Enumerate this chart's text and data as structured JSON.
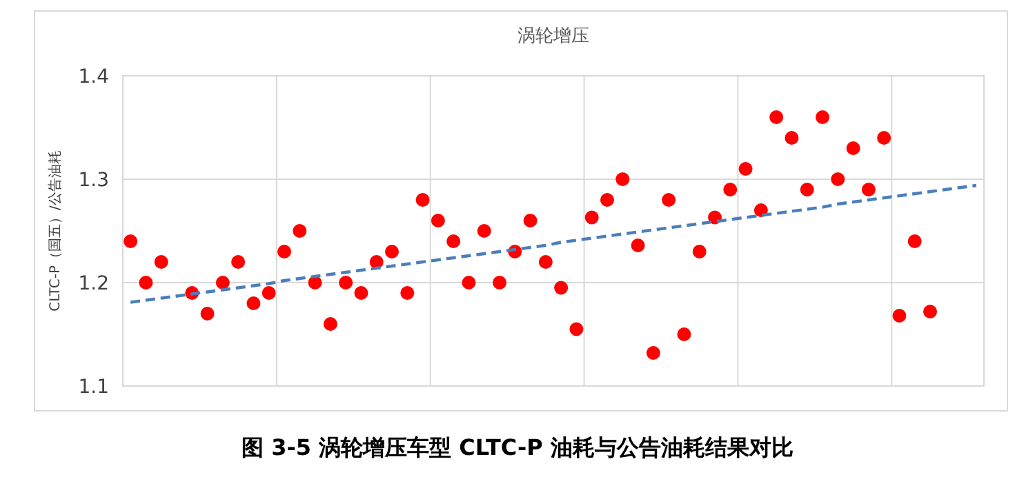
{
  "chart_data": {
    "type": "scatter",
    "title": "涡轮增压",
    "ylabel": "CLTC-P（国五）/公告油耗",
    "annotations": [
      "图 3-5 涡轮增压车型 CLTC-P 油耗与公告油耗结果对比"
    ],
    "categories": [
      null,
      null,
      null,
      null,
      null,
      null,
      null,
      null,
      null,
      null,
      null,
      null,
      null,
      null,
      null,
      null,
      null,
      null,
      null,
      null,
      null,
      null,
      null,
      null,
      null,
      null,
      null,
      null,
      null,
      null,
      null,
      null,
      null,
      null,
      null,
      null,
      null,
      null,
      null,
      null,
      null,
      null,
      null,
      null,
      null,
      null,
      null,
      null,
      null,
      null,
      null,
      null,
      null,
      null,
      null,
      null
    ],
    "ylim": [
      1.1,
      1.4
    ],
    "yticks": [
      1.1,
      1.2,
      1.3,
      1.4
    ],
    "grid": true,
    "tick_labels": "y",
    "series": [
      {
        "color": "#ff0000",
        "marker": "circle",
        "values": [
          1.24,
          1.2,
          1.22,
          null,
          1.19,
          1.17,
          1.2,
          1.22,
          1.18,
          1.19,
          1.23,
          1.25,
          1.2,
          1.16,
          1.2,
          1.19,
          1.22,
          1.23,
          1.19,
          1.28,
          1.26,
          1.24,
          1.2,
          1.25,
          1.2,
          1.23,
          1.26,
          1.22,
          1.195,
          1.155,
          1.263,
          1.28,
          1.3,
          1.236,
          1.132,
          1.28,
          1.15,
          1.23,
          1.263,
          1.29,
          1.31,
          1.27,
          1.36,
          1.34,
          1.29,
          1.36,
          1.3,
          1.33,
          1.29,
          1.34,
          1.168,
          1.24,
          1.172,
          null,
          null,
          null
        ]
      },
      {
        "type": "line",
        "color": "#4a7ebb",
        "line_style": "dashed",
        "values": [
          1.181,
          1.183,
          1.185,
          1.187,
          1.189,
          1.191,
          1.193,
          1.195,
          1.197,
          1.199,
          1.202,
          1.204,
          1.206,
          1.208,
          1.21,
          1.212,
          1.214,
          1.216,
          1.218,
          1.22,
          1.222,
          1.224,
          1.226,
          1.228,
          1.23,
          1.232,
          1.234,
          1.236,
          1.239,
          1.241,
          1.243,
          1.245,
          1.247,
          1.249,
          1.251,
          1.253,
          1.255,
          1.257,
          1.259,
          1.261,
          1.263,
          1.265,
          1.267,
          1.269,
          1.271,
          1.273,
          1.276,
          1.278,
          1.28,
          1.282,
          1.284,
          1.286,
          1.288,
          1.29,
          1.292,
          1.294
        ]
      }
    ]
  }
}
